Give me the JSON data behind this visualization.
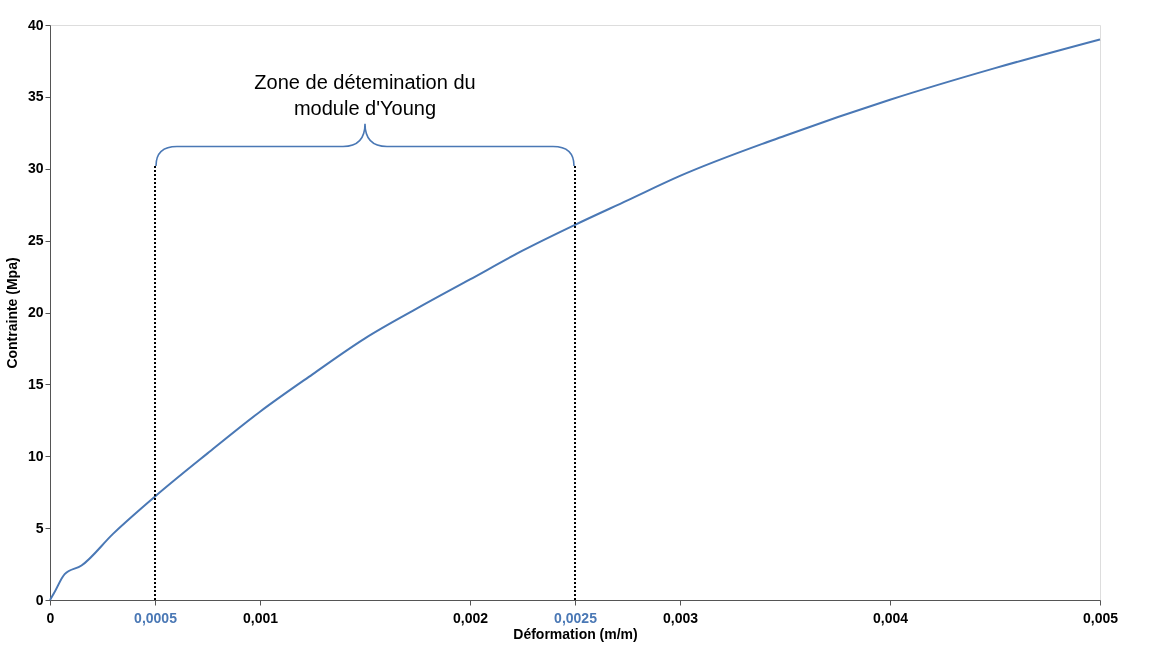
{
  "chart_data": {
    "type": "line",
    "xlabel": "Déformation (m/m)",
    "ylabel": "Contrainte (Mpa)",
    "x": [
      0,
      2e-05,
      7e-05,
      0.00015,
      0.0003,
      0.0005,
      0.00075,
      0.001,
      0.00125,
      0.0015,
      0.00175,
      0.002,
      0.00225,
      0.0025,
      0.00275,
      0.003,
      0.0035,
      0.004,
      0.0045,
      0.005
    ],
    "series": [
      {
        "color": "#4a78b5",
        "values": [
          0,
          0.5,
          1.8,
          2.4,
          4.6,
          7.2,
          10.2,
          13.1,
          15.7,
          18.2,
          20.3,
          22.3,
          24.3,
          26.1,
          27.8,
          29.5,
          32.3,
          34.8,
          37.0,
          39.0
        ]
      }
    ],
    "xlim": [
      0,
      0.005
    ],
    "ylim": [
      0,
      40
    ],
    "xticks": [
      0,
      {
        "value": 0.0005,
        "label": "0,0005"
      },
      {
        "value": 0.001,
        "label": "0,001"
      },
      {
        "value": 0.002,
        "label": "0,002"
      },
      {
        "value": 0.0025,
        "label": "0,0025"
      },
      {
        "value": 0.003,
        "label": "0,003"
      },
      {
        "value": 0.004,
        "label": "0,004"
      },
      {
        "value": 0.005,
        "label": "0,005"
      }
    ],
    "yticks": [
      0,
      5,
      10,
      15,
      20,
      25,
      30,
      35,
      40
    ],
    "ref_lines": [
      {
        "axis": "x",
        "value": 0.0005,
        "color": "#000000",
        "line_style": "dotted"
      },
      {
        "axis": "x",
        "value": 0.0025,
        "color": "#000000",
        "line_style": "dotted"
      }
    ],
    "annotations": [
      "Zone de détemination du\nmodule d'Young"
    ],
    "grid": false,
    "marker": "none",
    "line_style": "solid"
  }
}
